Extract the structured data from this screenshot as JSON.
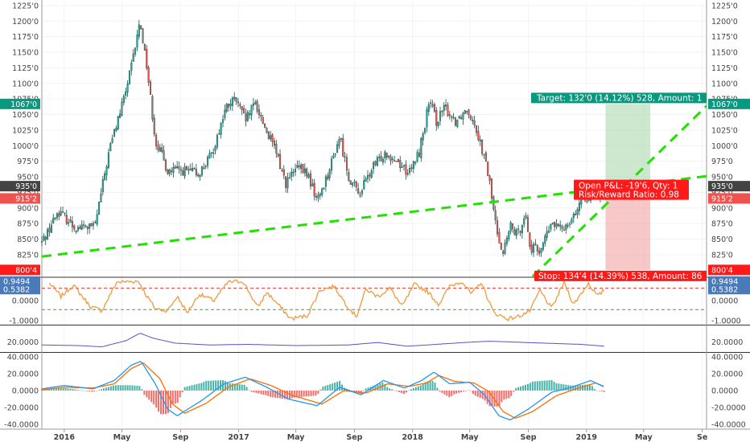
{
  "colors": {
    "up": "#26a69a",
    "down": "#ef5350",
    "candle_outline": "#1b4d48",
    "trendline": "#22e000",
    "stoch_line": "#f0a04b",
    "adx_line": "#5552c7",
    "macd_line": "#2196f3",
    "signal_line": "#ff6d00",
    "target_zone": "#a5d6a7",
    "stop_zone": "#ef9a9a",
    "target_badge": "#089981",
    "stop_badge": "#ff1a1a",
    "current_price_badge": "#ef5350",
    "bg": "#ffffff",
    "grid": "#f0f3f5"
  },
  "price_axis": {
    "ticks": [
      "1225'0",
      "1200'0",
      "1175'0",
      "1150'0",
      "1125'0",
      "1100'0",
      "1075'0",
      "1050'0",
      "1025'0",
      "1000'0",
      "975'0",
      "950'0",
      "925'0",
      "900'0",
      "875'0",
      "850'0",
      "825'0",
      "800'0"
    ],
    "tick_values": [
      1225,
      1200,
      1175,
      1150,
      1125,
      1100,
      1075,
      1050,
      1025,
      1000,
      975,
      950,
      925,
      900,
      875,
      850,
      825,
      800
    ],
    "badges": [
      {
        "label": "1067'0",
        "value": 1067,
        "color": "#089981"
      },
      {
        "label": "935'0",
        "value": 935,
        "color": "#444444"
      },
      {
        "label": "915'2",
        "value": 915.25,
        "color": "#ef5350"
      },
      {
        "label": "800'4",
        "value": 800.5,
        "color": "#ff1a1a"
      }
    ]
  },
  "time_axis": {
    "labels": [
      "2016",
      "May",
      "Sep",
      "2017",
      "May",
      "Sep",
      "2018",
      "May",
      "Sep",
      "2019",
      "May",
      "Se"
    ],
    "label_dates": [
      "2016-01-01",
      "2016-05-01",
      "2016-09-01",
      "2017-01-01",
      "2017-05-01",
      "2017-09-01",
      "2018-01-01",
      "2018-05-01",
      "2018-09-01",
      "2019-01-01",
      "2019-05-01",
      "2019-09-01"
    ]
  },
  "position": {
    "target_label": "Target: 132'0 (14.12%) 528, Amount: 1",
    "pnl_label": "Open P&L: -19'6, Qty: 1",
    "rr_label": "Risk/Reward Ratio: 0.98",
    "stop_label": "Stop: 134'4 (14.39%) 538, Amount: 86",
    "entry": 935,
    "target": 1067,
    "stop": 800.5,
    "start_date": "2019-02-10",
    "end_date": "2019-05-15"
  },
  "stoch_panel": {
    "ticks": [
      "1.0000",
      "0.0000",
      "-1.0000"
    ],
    "tick_values": [
      1,
      0,
      -1
    ],
    "upper_band": 0.6,
    "lower_band": -0.45,
    "badges": [
      {
        "label": "0.9494",
        "value": 0.9494
      },
      {
        "label": "0.5382",
        "value": 0.5382
      }
    ]
  },
  "adx_panel": {
    "ticks": [
      "20.0000"
    ],
    "tick_values": [
      20
    ]
  },
  "macd_panel": {
    "ticks": [
      "40.0000",
      "20.0000",
      "0.0000",
      "-20.0000",
      "-40.0000"
    ],
    "tick_values": [
      40,
      20,
      0,
      -20,
      -40
    ]
  },
  "chart_data": [
    {
      "type": "candlestick",
      "title": "",
      "ylim": [
        790,
        1230
      ],
      "x_range": [
        "2015-11-15",
        "2019-09-10"
      ],
      "price_waypoints": [
        {
          "x": "2015-11-15",
          "y": 845
        },
        {
          "x": "2015-12-20",
          "y": 895
        },
        {
          "x": "2016-01-25",
          "y": 868
        },
        {
          "x": "2016-03-05",
          "y": 870
        },
        {
          "x": "2016-04-05",
          "y": 995
        },
        {
          "x": "2016-05-05",
          "y": 1075
        },
        {
          "x": "2016-05-22",
          "y": 1130
        },
        {
          "x": "2016-06-08",
          "y": 1200
        },
        {
          "x": "2016-06-22",
          "y": 1130
        },
        {
          "x": "2016-07-10",
          "y": 1010
        },
        {
          "x": "2016-08-05",
          "y": 960
        },
        {
          "x": "2016-09-05",
          "y": 960
        },
        {
          "x": "2016-10-10",
          "y": 955
        },
        {
          "x": "2016-11-05",
          "y": 985
        },
        {
          "x": "2016-12-05",
          "y": 1060
        },
        {
          "x": "2016-12-25",
          "y": 1075
        },
        {
          "x": "2017-01-15",
          "y": 1040
        },
        {
          "x": "2017-02-05",
          "y": 1068
        },
        {
          "x": "2017-02-25",
          "y": 1030
        },
        {
          "x": "2017-03-20",
          "y": 990
        },
        {
          "x": "2017-04-10",
          "y": 940
        },
        {
          "x": "2017-05-05",
          "y": 965
        },
        {
          "x": "2017-05-25",
          "y": 955
        },
        {
          "x": "2017-06-15",
          "y": 912
        },
        {
          "x": "2017-07-10",
          "y": 960
        },
        {
          "x": "2017-08-01",
          "y": 1015
        },
        {
          "x": "2017-08-20",
          "y": 950
        },
        {
          "x": "2017-09-10",
          "y": 922
        },
        {
          "x": "2017-10-10",
          "y": 965
        },
        {
          "x": "2017-11-05",
          "y": 990
        },
        {
          "x": "2017-12-01",
          "y": 975
        },
        {
          "x": "2017-12-25",
          "y": 955
        },
        {
          "x": "2018-01-15",
          "y": 990
        },
        {
          "x": "2018-02-05",
          "y": 1070
        },
        {
          "x": "2018-02-20",
          "y": 1040
        },
        {
          "x": "2018-03-10",
          "y": 1060
        },
        {
          "x": "2018-04-01",
          "y": 1040
        },
        {
          "x": "2018-04-25",
          "y": 1060
        },
        {
          "x": "2018-05-10",
          "y": 1040
        },
        {
          "x": "2018-05-25",
          "y": 1000
        },
        {
          "x": "2018-06-10",
          "y": 950
        },
        {
          "x": "2018-06-25",
          "y": 870
        },
        {
          "x": "2018-07-10",
          "y": 828
        },
        {
          "x": "2018-07-25",
          "y": 870
        },
        {
          "x": "2018-08-10",
          "y": 855
        },
        {
          "x": "2018-08-25",
          "y": 895
        },
        {
          "x": "2018-09-05",
          "y": 835
        },
        {
          "x": "2018-09-25",
          "y": 832
        },
        {
          "x": "2018-10-20",
          "y": 875
        },
        {
          "x": "2018-11-10",
          "y": 865
        },
        {
          "x": "2018-12-05",
          "y": 890
        },
        {
          "x": "2018-12-25",
          "y": 915
        },
        {
          "x": "2019-01-15",
          "y": 925
        },
        {
          "x": "2019-02-08",
          "y": 920
        }
      ],
      "annotations": {
        "trendline_lower": {
          "from": {
            "x": "2015-11-15",
            "y": 822
          },
          "to": {
            "x": "2019-09-10",
            "y": 951
          }
        },
        "trendline_upper": {
          "from": {
            "x": "2018-09-10",
            "y": 790
          },
          "to": {
            "x": "2019-09-10",
            "y": 1064
          }
        }
      }
    },
    {
      "type": "line",
      "title": "",
      "ylim": [
        -1.15,
        1.1
      ],
      "notes": "stochastic RSI oscillator",
      "series": [
        {
          "x": [
            "2015-12-01",
            "2015-12-25",
            "2016-01-20",
            "2016-02-25",
            "2016-03-20",
            "2016-04-20",
            "2016-06-05",
            "2016-06-20",
            "2016-07-10",
            "2016-08-05",
            "2016-08-25",
            "2016-09-15",
            "2016-10-10",
            "2016-11-10",
            "2016-12-10",
            "2017-01-10",
            "2017-02-10",
            "2017-03-01",
            "2017-03-25",
            "2017-04-20",
            "2017-05-25",
            "2017-06-20",
            "2017-07-20",
            "2017-08-15",
            "2017-09-05",
            "2017-09-25",
            "2017-10-20",
            "2017-11-15",
            "2017-12-10",
            "2018-01-05",
            "2018-02-01",
            "2018-02-25",
            "2018-03-20",
            "2018-04-15",
            "2018-05-05",
            "2018-05-25",
            "2018-06-20",
            "2018-07-20",
            "2018-08-10",
            "2018-09-05",
            "2018-09-25",
            "2018-10-20",
            "2018-11-15",
            "2018-12-05",
            "2019-01-05",
            "2019-01-25",
            "2019-02-08"
          ],
          "values": [
            0.85,
            0.2,
            0.75,
            -0.3,
            -0.5,
            0.9,
            0.95,
            0.3,
            -0.4,
            -0.5,
            0.2,
            -0.6,
            0.3,
            0.0,
            0.9,
            0.95,
            -0.35,
            0.4,
            -0.2,
            -0.9,
            -0.75,
            0.5,
            0.7,
            -0.2,
            -0.8,
            0.55,
            0.2,
            0.6,
            -0.3,
            0.8,
            0.45,
            -0.2,
            0.7,
            0.95,
            0.3,
            0.9,
            -0.6,
            -0.9,
            -0.8,
            -0.5,
            0.5,
            -0.4,
            0.9,
            -0.2,
            0.85,
            0.2,
            0.54
          ]
        }
      ]
    },
    {
      "type": "line",
      "title": "",
      "ylim": [
        5,
        45
      ],
      "notes": "ADX indicator",
      "series": [
        {
          "x": [
            "2015-11-15",
            "2016-02-01",
            "2016-03-20",
            "2016-05-10",
            "2016-06-08",
            "2016-07-05",
            "2016-08-20",
            "2016-11-01",
            "2017-01-20",
            "2017-05-01",
            "2017-08-20",
            "2017-10-20",
            "2017-12-20",
            "2018-02-20",
            "2018-04-20",
            "2018-06-10",
            "2018-07-20",
            "2018-10-01",
            "2018-12-20",
            "2019-02-08"
          ],
          "values": [
            15,
            14,
            12,
            22,
            34,
            26,
            18,
            15,
            16,
            14,
            15,
            19,
            13,
            16,
            19,
            21,
            20,
            18,
            16,
            13
          ]
        }
      ]
    },
    {
      "type": "line",
      "title": "",
      "ylim": [
        -44,
        44
      ],
      "notes": "MACD with signal line and histogram",
      "series": [
        {
          "x": [
            "2015-11-15",
            "2016-01-01",
            "2016-03-01",
            "2016-04-15",
            "2016-05-20",
            "2016-06-10",
            "2016-07-10",
            "2016-08-05",
            "2016-08-25",
            "2016-10-15",
            "2016-12-01",
            "2017-01-15",
            "2017-03-01",
            "2017-04-15",
            "2017-06-15",
            "2017-08-01",
            "2017-09-15",
            "2017-11-01",
            "2017-12-15",
            "2018-01-20",
            "2018-02-15",
            "2018-03-20",
            "2018-05-01",
            "2018-06-01",
            "2018-07-01",
            "2018-07-25",
            "2018-09-01",
            "2018-10-20",
            "2018-12-01",
            "2019-01-10",
            "2019-02-08"
          ],
          "values": [
            2,
            6,
            2,
            12,
            30,
            35,
            8,
            -22,
            -30,
            -12,
            8,
            16,
            4,
            -10,
            -18,
            4,
            -5,
            12,
            3,
            12,
            22,
            8,
            10,
            -5,
            -30,
            -35,
            -22,
            -2,
            4,
            12,
            4
          ]
        },
        {
          "x": [
            "2015-11-15",
            "2016-01-01",
            "2016-03-01",
            "2016-04-15",
            "2016-05-20",
            "2016-06-15",
            "2016-07-20",
            "2016-08-15",
            "2016-09-10",
            "2016-10-25",
            "2016-12-10",
            "2017-01-25",
            "2017-03-10",
            "2017-04-25",
            "2017-06-25",
            "2017-08-10",
            "2017-09-25",
            "2017-11-10",
            "2017-12-25",
            "2018-01-30",
            "2018-02-25",
            "2018-03-30",
            "2018-05-10",
            "2018-06-10",
            "2018-07-10",
            "2018-08-05",
            "2018-09-10",
            "2018-10-30",
            "2018-12-10",
            "2019-01-20",
            "2019-02-08"
          ],
          "values": [
            1,
            4,
            3,
            8,
            26,
            33,
            14,
            -16,
            -27,
            -15,
            4,
            14,
            6,
            -6,
            -16,
            0,
            -3,
            8,
            5,
            9,
            18,
            11,
            9,
            -1,
            -25,
            -33,
            -25,
            -6,
            2,
            9,
            5
          ]
        }
      ]
    }
  ]
}
